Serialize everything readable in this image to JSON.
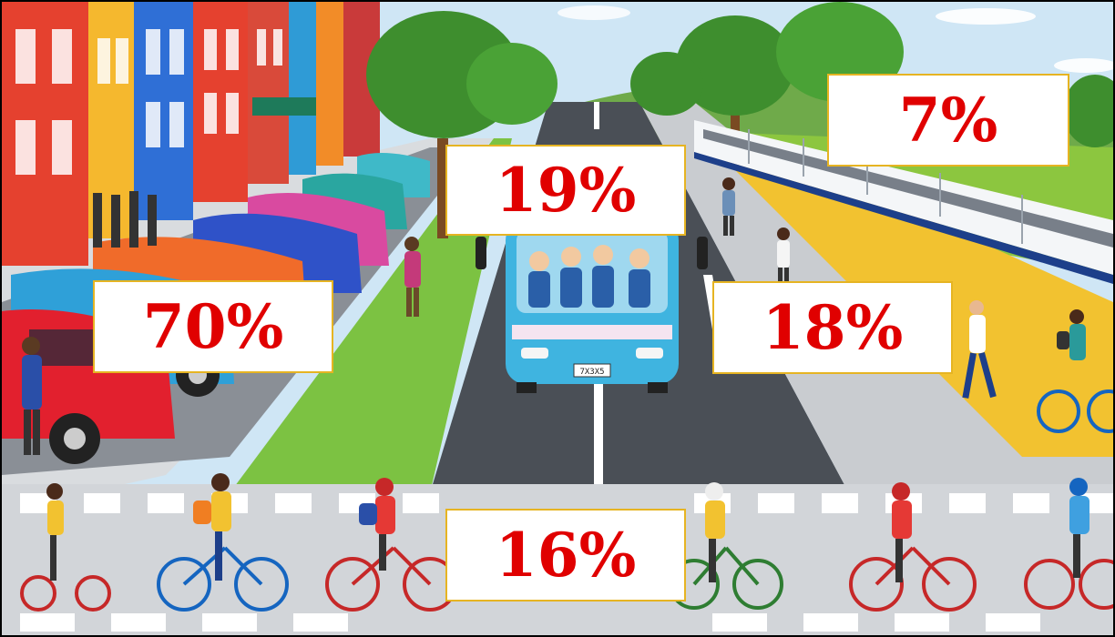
{
  "labels": {
    "car": "70%",
    "bus": "19%",
    "train": "7%",
    "walk": "18%",
    "bike": "16%"
  },
  "bus_plate": "7X3X5",
  "colors": {
    "label_text": "#e00000",
    "label_border": "#e6b422",
    "road": "#4a4f56",
    "bike_lane": "#7cc242",
    "bus": "#3fb4e0",
    "train_lane": "#f2c230"
  }
}
